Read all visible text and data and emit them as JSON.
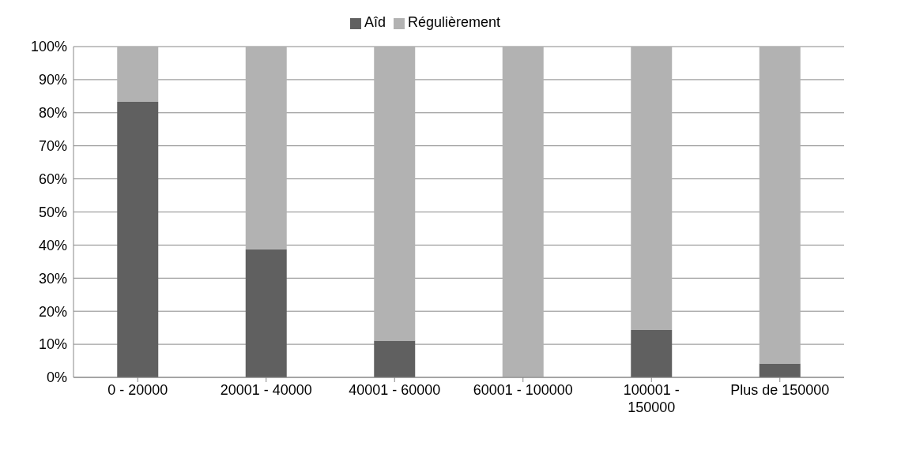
{
  "chart_data": {
    "type": "bar",
    "stacked": true,
    "categories": [
      "0 - 20000",
      "20001 - 40000",
      "40001 - 60000",
      "60001 - 100000",
      "100001 - 150000",
      "Plus de 150000"
    ],
    "series": [
      {
        "name": "Aîd",
        "color": "#606060",
        "values": [
          83.3,
          38.7,
          11.1,
          0,
          14.3,
          4.2
        ]
      },
      {
        "name": "Régulièrement",
        "color": "#b2b2b2",
        "values": [
          16.7,
          61.3,
          88.9,
          100,
          85.7,
          95.8
        ]
      }
    ],
    "ylim": [
      0,
      100
    ],
    "yticks": [
      {
        "value": 0,
        "label": "0%"
      },
      {
        "value": 10,
        "label": "10%"
      },
      {
        "value": 20,
        "label": "20%"
      },
      {
        "value": 30,
        "label": "30%"
      },
      {
        "value": 40,
        "label": "40%"
      },
      {
        "value": 50,
        "label": "50%"
      },
      {
        "value": 60,
        "label": "60%"
      },
      {
        "value": 70,
        "label": "70%"
      },
      {
        "value": 80,
        "label": "80%"
      },
      {
        "value": 90,
        "label": "90%"
      },
      {
        "value": 100,
        "label": "100%"
      }
    ],
    "grid": "y",
    "legend": "top"
  }
}
